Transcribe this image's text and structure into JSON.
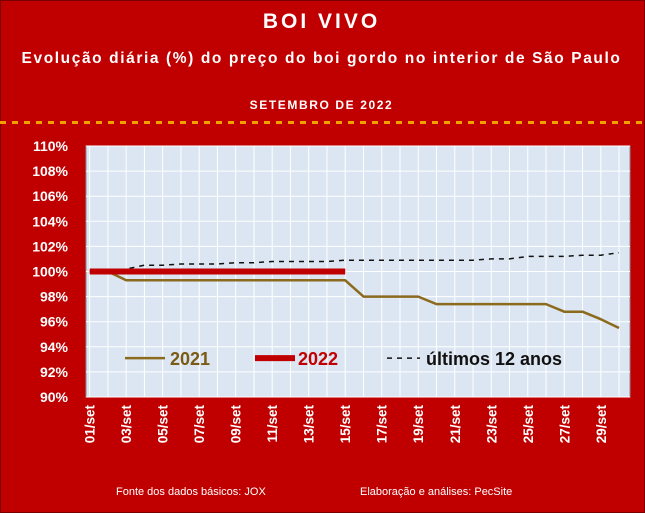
{
  "title": "BOI VIVO",
  "subtitle": "Evolução diária (%) do preço do boi gordo no interior de São Paulo",
  "period": "SETEMBRO DE 2022",
  "footer": {
    "source": "Fonte dos dados básicos: JOX",
    "credits": "Elaboração e análises: PecSite"
  },
  "colors": {
    "background": "#c00000",
    "plot_area": "#dbe6f2",
    "series_2021": "#8b6a1e",
    "series_2022": "#c00000",
    "series_12y": "#111111"
  },
  "chart_data": {
    "type": "line",
    "y_tick_labels": [
      "90%",
      "92%",
      "94%",
      "96%",
      "98%",
      "100%",
      "102%",
      "104%",
      "106%",
      "108%",
      "110%"
    ],
    "ylim": [
      90,
      110
    ],
    "x_tick_labels": [
      "01/set",
      "03/set",
      "05/set",
      "07/set",
      "09/set",
      "11/set",
      "13/set",
      "15/set",
      "17/set",
      "19/set",
      "21/set",
      "23/set",
      "25/set",
      "27/set",
      "29/set"
    ],
    "x_days": [
      1,
      2,
      3,
      4,
      5,
      6,
      7,
      8,
      9,
      10,
      11,
      12,
      13,
      14,
      15,
      16,
      17,
      18,
      19,
      20,
      21,
      22,
      23,
      24,
      25,
      26,
      27,
      28,
      29,
      30
    ],
    "legend_position": "bottom-inside",
    "series": [
      {
        "name": "2021",
        "values": [
          100.0,
          100.0,
          99.3,
          99.3,
          99.3,
          99.3,
          99.3,
          99.3,
          99.3,
          99.3,
          99.3,
          99.3,
          99.3,
          99.3,
          99.3,
          98.0,
          98.0,
          98.0,
          98.0,
          97.4,
          97.4,
          97.4,
          97.4,
          97.4,
          97.4,
          97.4,
          96.8,
          96.8,
          96.2,
          95.5
        ]
      },
      {
        "name": "2022",
        "values": [
          100.0,
          100.0,
          100.0,
          100.0,
          100.0,
          100.0,
          100.0,
          100.0,
          100.0,
          100.0,
          100.0,
          100.0,
          100.0,
          100.0,
          100.0
        ]
      },
      {
        "name": "últimos 12 anos",
        "values": [
          100.0,
          100.0,
          100.2,
          100.5,
          100.5,
          100.6,
          100.6,
          100.6,
          100.7,
          100.7,
          100.8,
          100.8,
          100.8,
          100.8,
          100.9,
          100.9,
          100.9,
          100.9,
          100.9,
          100.9,
          100.9,
          100.9,
          101.0,
          101.0,
          101.2,
          101.2,
          101.2,
          101.3,
          101.3,
          101.5
        ]
      }
    ]
  }
}
